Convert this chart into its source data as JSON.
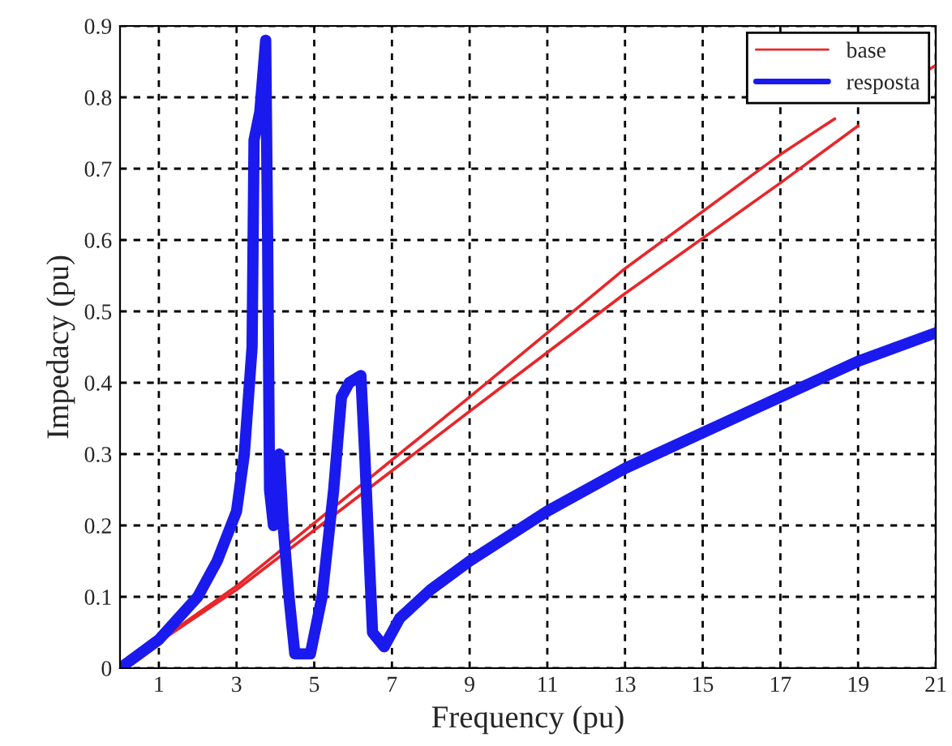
{
  "chart_data": {
    "type": "line",
    "xlabel": "Frequency (pu)",
    "ylabel": "Impedacy (pu)",
    "xlim": [
      0,
      21
    ],
    "xticks": [
      1,
      3,
      5,
      7,
      9,
      11,
      13,
      15,
      17,
      19,
      21
    ],
    "ylim": [
      0,
      0.9
    ],
    "yticks": [
      0,
      0.1,
      0.2,
      0.3,
      0.4,
      0.5,
      0.6,
      0.7,
      0.8,
      0.9
    ],
    "grid": true,
    "legend": "top right",
    "line_style": "solid",
    "marker": "none",
    "series": [
      {
        "name": "base",
        "color": "#e8262a",
        "x": [
          0,
          3,
          9,
          13,
          17,
          18.4,
          20,
          20.8,
          21
        ],
        "values": [
          0,
          0.115,
          0.38,
          0.56,
          0.72,
          0.77,
          null,
          0.838,
          0.845
        ]
      },
      {
        "color": "#e8262a",
        "x": [
          0,
          3,
          9,
          13,
          17,
          19
        ],
        "values": [
          0,
          0.11,
          0.36,
          0.525,
          0.68,
          0.76
        ]
      },
      {
        "name": "resposta",
        "color": "#1a1aee",
        "x": [
          0,
          1,
          2,
          2.5,
          3,
          3.2,
          3.4,
          3.45,
          3.6,
          3.75,
          3.8,
          3.85,
          3.95,
          4.1,
          4.2,
          4.35,
          4.5,
          4.9,
          5.2,
          5.5,
          5.7,
          5.9,
          6.2,
          6.3,
          6.5,
          6.8,
          7.2,
          8,
          9,
          11,
          13,
          15,
          17,
          19,
          21
        ],
        "values": [
          0,
          0.04,
          0.1,
          0.15,
          0.22,
          0.3,
          0.45,
          0.74,
          0.78,
          0.88,
          0.6,
          0.25,
          0.2,
          0.3,
          0.2,
          0.1,
          0.02,
          0.02,
          0.1,
          0.25,
          0.38,
          0.4,
          0.41,
          0.3,
          0.05,
          0.03,
          0.07,
          0.11,
          0.15,
          0.22,
          0.28,
          0.33,
          0.38,
          0.43,
          0.47
        ]
      }
    ]
  }
}
